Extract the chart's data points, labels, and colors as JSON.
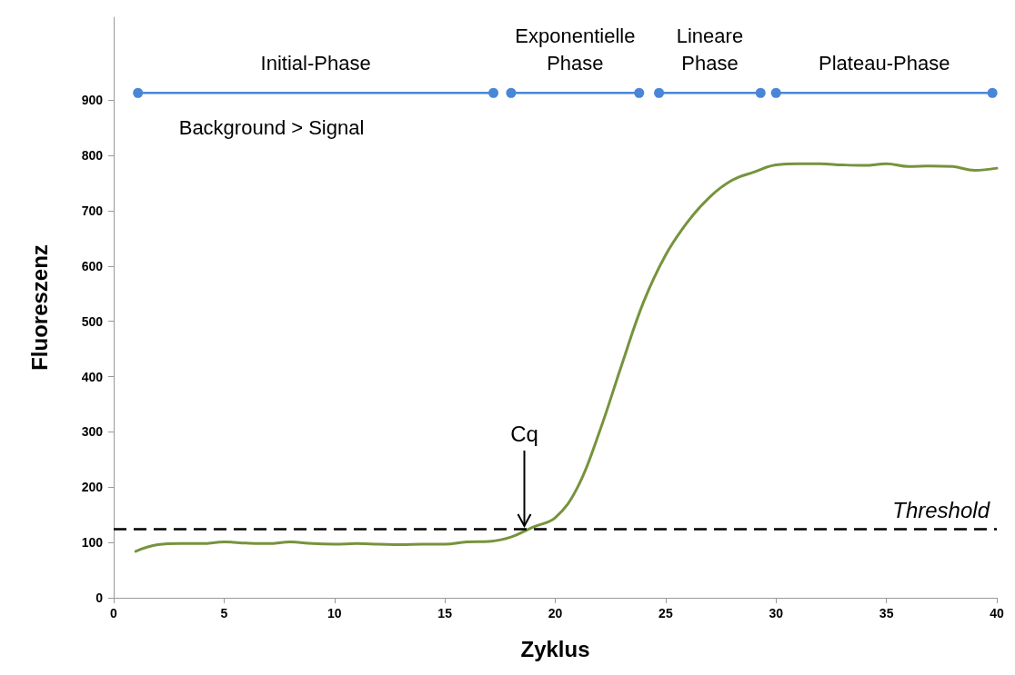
{
  "chart_data": {
    "type": "line",
    "xlabel": "Zyklus",
    "ylabel": "Fluoreszenz",
    "xlim": [
      0,
      40
    ],
    "xticks": [
      0,
      5,
      10,
      15,
      20,
      25,
      30,
      35,
      40
    ],
    "ylim": [
      0,
      1050
    ],
    "yticks": [
      0,
      100,
      200,
      300,
      400,
      500,
      600,
      700,
      800,
      900
    ],
    "grid": false,
    "series": [
      {
        "color": "#77933c",
        "marker": "none",
        "x": [
          1,
          2,
          3,
          4,
          5,
          6,
          7,
          8,
          9,
          10,
          11,
          12,
          13,
          14,
          15,
          16,
          17,
          18,
          19,
          20,
          21,
          22,
          23,
          24,
          25,
          26,
          27,
          28,
          29,
          30,
          31,
          32,
          33,
          34,
          35,
          36,
          37,
          38,
          39,
          40
        ],
        "values": [
          84,
          96,
          98,
          98,
          101,
          99,
          98,
          101,
          98,
          97,
          98,
          97,
          96,
          97,
          97,
          101,
          102,
          110,
          128,
          145,
          199,
          300,
          420,
          535,
          620,
          680,
          725,
          755,
          770,
          783,
          785,
          785,
          783,
          782,
          785,
          780,
          781,
          780,
          773,
          777
        ]
      },
      {
        "color": "#4a86d8",
        "marker": "circle",
        "x": [
          1.1,
          17.2
        ],
        "values": [
          913,
          913
        ]
      },
      {
        "color": "#4a86d8",
        "marker": "circle",
        "x": [
          18.0,
          23.8
        ],
        "values": [
          913,
          913
        ]
      },
      {
        "color": "#4a86d8",
        "marker": "circle",
        "x": [
          24.7,
          29.3
        ],
        "values": [
          913,
          913
        ]
      },
      {
        "color": "#4a86d8",
        "marker": "circle",
        "x": [
          30.0,
          39.8
        ],
        "values": [
          913,
          913
        ]
      }
    ],
    "ref_lines": [
      {
        "axis": "y",
        "value": 125,
        "label": "Threshold",
        "color": "#000000",
        "line_style": "dashed"
      }
    ],
    "annotations": [
      "Initial-Phase",
      "Exponentielle\nPhase",
      "Lineare\nPhase",
      "Plateau-Phase",
      "Background > Signal",
      {
        "text": "Cq",
        "x": 18.6,
        "y": 125
      }
    ]
  }
}
